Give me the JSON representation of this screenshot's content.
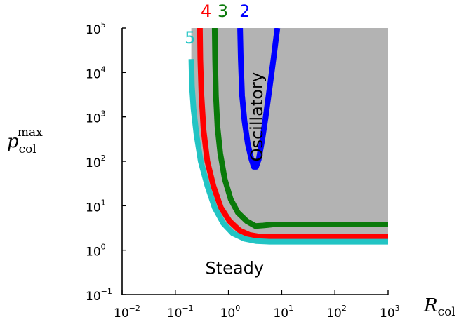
{
  "chart_data": {
    "type": "line",
    "title": "",
    "xlabel": {
      "main": "R",
      "sub": "col"
    },
    "ylabel": {
      "main": "p",
      "sub": "col",
      "sup": "max"
    },
    "x_scale": "log",
    "y_scale": "log",
    "xlim": [
      0.01,
      1000
    ],
    "ylim": [
      0.1,
      100000
    ],
    "x_ticks": [
      {
        "base": "10",
        "exp": "−2"
      },
      {
        "base": "10",
        "exp": "−1"
      },
      {
        "base": "10",
        "exp": "0"
      },
      {
        "base": "10",
        "exp": "1"
      },
      {
        "base": "10",
        "exp": "2"
      },
      {
        "base": "10",
        "exp": "3"
      }
    ],
    "y_ticks": [
      {
        "base": "10",
        "exp": "−1"
      },
      {
        "base": "10",
        "exp": "0"
      },
      {
        "base": "10",
        "exp": "1"
      },
      {
        "base": "10",
        "exp": "2"
      },
      {
        "base": "10",
        "exp": "3"
      },
      {
        "base": "10",
        "exp": "4"
      },
      {
        "base": "10",
        "exp": "5"
      }
    ],
    "grid": false,
    "shaded_region_color": "#b3b3b3",
    "regions": [
      {
        "label": "Oscillatory",
        "x": 3.5,
        "y": 1000,
        "rotation": -90
      },
      {
        "label": "Steady",
        "x": 1.3,
        "y": 0.38,
        "rotation": 0
      }
    ],
    "series": [
      {
        "name": "2",
        "color": "#0000ff",
        "x": [
          1.65,
          1.7,
          1.8,
          2.0,
          2.3,
          2.7,
          3.0,
          3.3,
          3.7,
          4.3,
          5.0,
          6.0,
          7.0,
          7.7,
          8.1,
          8.3
        ],
        "y": [
          100000,
          20000,
          3000,
          800,
          250,
          110,
          75,
          75,
          110,
          300,
          1000,
          5000,
          20000,
          50000,
          80000,
          100000
        ]
      },
      {
        "name": "3",
        "color": "#0a7a0a",
        "x": [
          0.55,
          0.56,
          0.58,
          0.62,
          0.7,
          0.85,
          1.1,
          1.5,
          2.2,
          3.2,
          4.5,
          7.0,
          15,
          50,
          1000
        ],
        "y": [
          100000,
          20000,
          3000,
          600,
          150,
          40,
          14,
          7,
          4.5,
          3.5,
          3.6,
          3.8,
          3.8,
          3.8,
          3.8
        ]
      },
      {
        "name": "4",
        "color": "#ff0000",
        "x": [
          0.29,
          0.295,
          0.31,
          0.34,
          0.4,
          0.52,
          0.72,
          1.05,
          1.6,
          2.5,
          4.0,
          8.0,
          50,
          1000
        ],
        "y": [
          100000,
          20000,
          3000,
          500,
          100,
          28,
          9,
          4.5,
          2.8,
          2.2,
          2.0,
          2.0,
          2.0,
          2.0
        ]
      },
      {
        "name": "5",
        "color": "#22c4c4",
        "x": [
          0.2,
          0.205,
          0.22,
          0.25,
          0.3,
          0.4,
          0.55,
          0.8,
          1.2,
          2.0,
          3.3,
          6.0,
          30,
          1000
        ],
        "y": [
          20000,
          5000,
          1500,
          400,
          100,
          28,
          9,
          4.0,
          2.4,
          1.8,
          1.6,
          1.55,
          1.55,
          1.55
        ]
      }
    ],
    "series_label_positions": [
      {
        "name": "2",
        "x": 1.6,
        "y": 180000
      },
      {
        "name": "3",
        "x": 0.62,
        "y": 180000
      },
      {
        "name": "4",
        "x": 0.3,
        "y": 180000
      },
      {
        "name": "5",
        "x": 0.15,
        "y": 45000
      }
    ]
  }
}
